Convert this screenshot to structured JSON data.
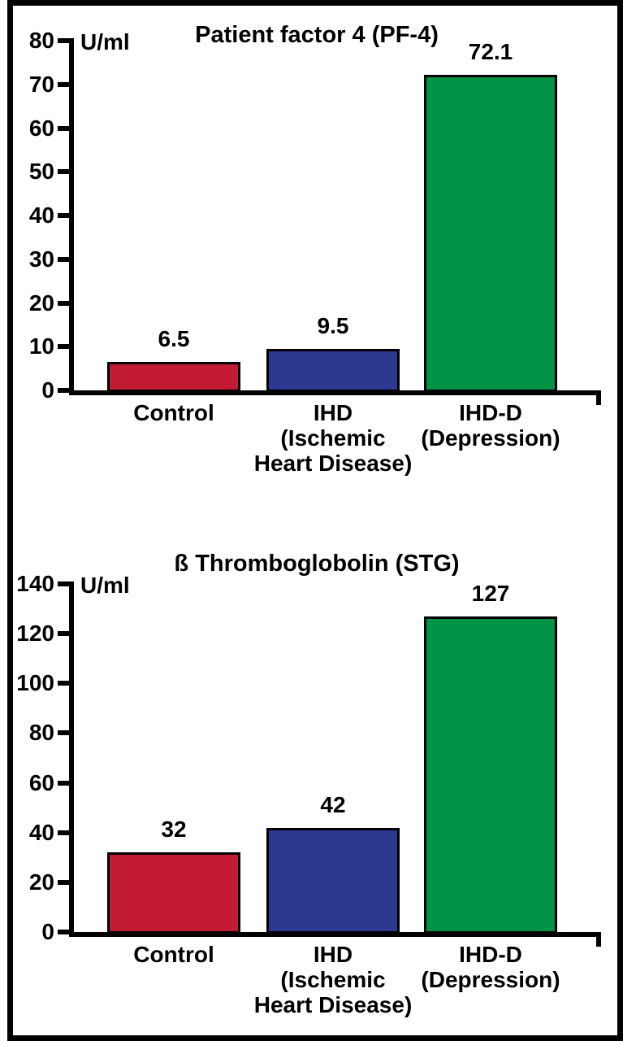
{
  "figure": {
    "background": "#ffffff",
    "frame_color": "#000000",
    "text_color": "#000000"
  },
  "chart_data": [
    {
      "type": "bar",
      "title": "Patient factor 4 (PF-4)",
      "ylabel": "U/ml",
      "xlabel": "",
      "ylim": [
        0,
        80
      ],
      "yticks": [
        0,
        10,
        20,
        30,
        40,
        50,
        60,
        70,
        80
      ],
      "grid": false,
      "legend": "none",
      "categories": [
        [
          "Control"
        ],
        [
          "IHD",
          "(Ischemic",
          "Heart Disease)"
        ],
        [
          "IHD-D",
          "(Depression)"
        ]
      ],
      "values": [
        6.5,
        9.5,
        72.1
      ],
      "value_labels": [
        "6.5",
        "9.5",
        "72.1"
      ],
      "bar_colors": [
        "#c21b33",
        "#2b3990",
        "#009245"
      ]
    },
    {
      "type": "bar",
      "title": "ß Thromboglobolin (STG)",
      "ylabel": "U/ml",
      "xlabel": "",
      "ylim": [
        0,
        140
      ],
      "yticks": [
        0,
        20,
        40,
        60,
        80,
        100,
        120,
        140
      ],
      "grid": false,
      "legend": "none",
      "categories": [
        [
          "Control"
        ],
        [
          "IHD",
          "(Ischemic",
          "Heart Disease)"
        ],
        [
          "IHD-D",
          "(Depression)"
        ]
      ],
      "values": [
        32,
        42,
        127
      ],
      "value_labels": [
        "32",
        "42",
        "127"
      ],
      "bar_colors": [
        "#c21b33",
        "#2b3990",
        "#009245"
      ]
    }
  ]
}
